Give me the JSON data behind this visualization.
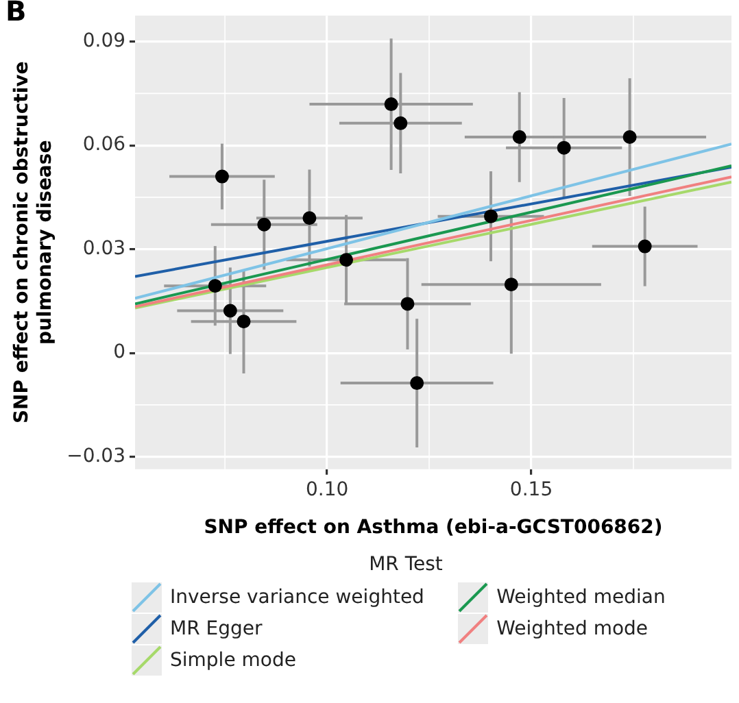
{
  "chart_data": {
    "type": "scatter",
    "xlabel": "SNP effect on Asthma (ebi-a-GCST006862)",
    "ylabel": "SNP effect on chronic obstructive pulmonary disease",
    "legend_title": "MR Test",
    "annotations": [
      "B"
    ],
    "xlim": [
      0.053,
      0.199
    ],
    "xticks": [
      {
        "value": 0.1,
        "label": "0.10"
      },
      0.15
    ],
    "ylim": [
      -0.0336,
      0.0975
    ],
    "yticks": [
      {
        "value": -0.03,
        "label": "−0.03"
      },
      0,
      0.03,
      0.06,
      0.09
    ],
    "grid": true,
    "legend": "bottom",
    "series": [
      {
        "color": "#000000",
        "marker": "circle",
        "x": [
          0.0743,
          0.0846,
          0.0957,
          0.1047,
          0.0726,
          0.0763,
          0.0796,
          0.1157,
          0.118,
          0.1471,
          0.158,
          0.1741,
          0.1401,
          0.1451,
          0.1778,
          0.1197,
          0.122
        ],
        "values": [
          0.051,
          0.0371,
          0.039,
          0.0269,
          0.0194,
          0.0122,
          0.0091,
          0.0719,
          0.0664,
          0.0624,
          0.0593,
          0.0624,
          0.0395,
          0.0198,
          0.0308,
          0.0142,
          -0.0087
        ],
        "errors": [
          0.0095,
          0.013,
          0.014,
          0.013,
          0.0115,
          0.0125,
          0.015,
          0.019,
          0.0145,
          0.013,
          0.0144,
          0.017,
          0.013,
          0.02,
          0.0115,
          0.0132,
          0.0186
        ],
        "xerrors": [
          0.0129,
          0.013,
          0.013,
          0.0147,
          0.0125,
          0.013,
          0.0129,
          0.02,
          0.015,
          0.0134,
          0.0142,
          0.0187,
          0.013,
          0.022,
          0.0129,
          0.0155,
          0.0187
        ]
      },
      {
        "type": "line",
        "name": "Inverse variance weighted",
        "color": "#7ec3e6",
        "x": [
          0.053,
          0.199
        ],
        "values": [
          0.0158,
          0.0604
        ]
      },
      {
        "type": "line",
        "name": "Weighted median",
        "color": "#1a9850",
        "x": [
          0.053,
          0.199
        ],
        "values": [
          0.0142,
          0.0541
        ]
      },
      {
        "type": "line",
        "name": "MR Egger",
        "color": "#1f5fa8",
        "x": [
          0.053,
          0.199
        ],
        "values": [
          0.0221,
          0.0537
        ]
      },
      {
        "type": "line",
        "name": "Weighted mode",
        "color": "#f08080",
        "x": [
          0.053,
          0.199
        ],
        "values": [
          0.0134,
          0.0509
        ]
      },
      {
        "type": "line",
        "name": "Simple mode",
        "color": "#a6d96a",
        "x": [
          0.053,
          0.199
        ],
        "values": [
          0.013,
          0.0494
        ]
      }
    ]
  }
}
